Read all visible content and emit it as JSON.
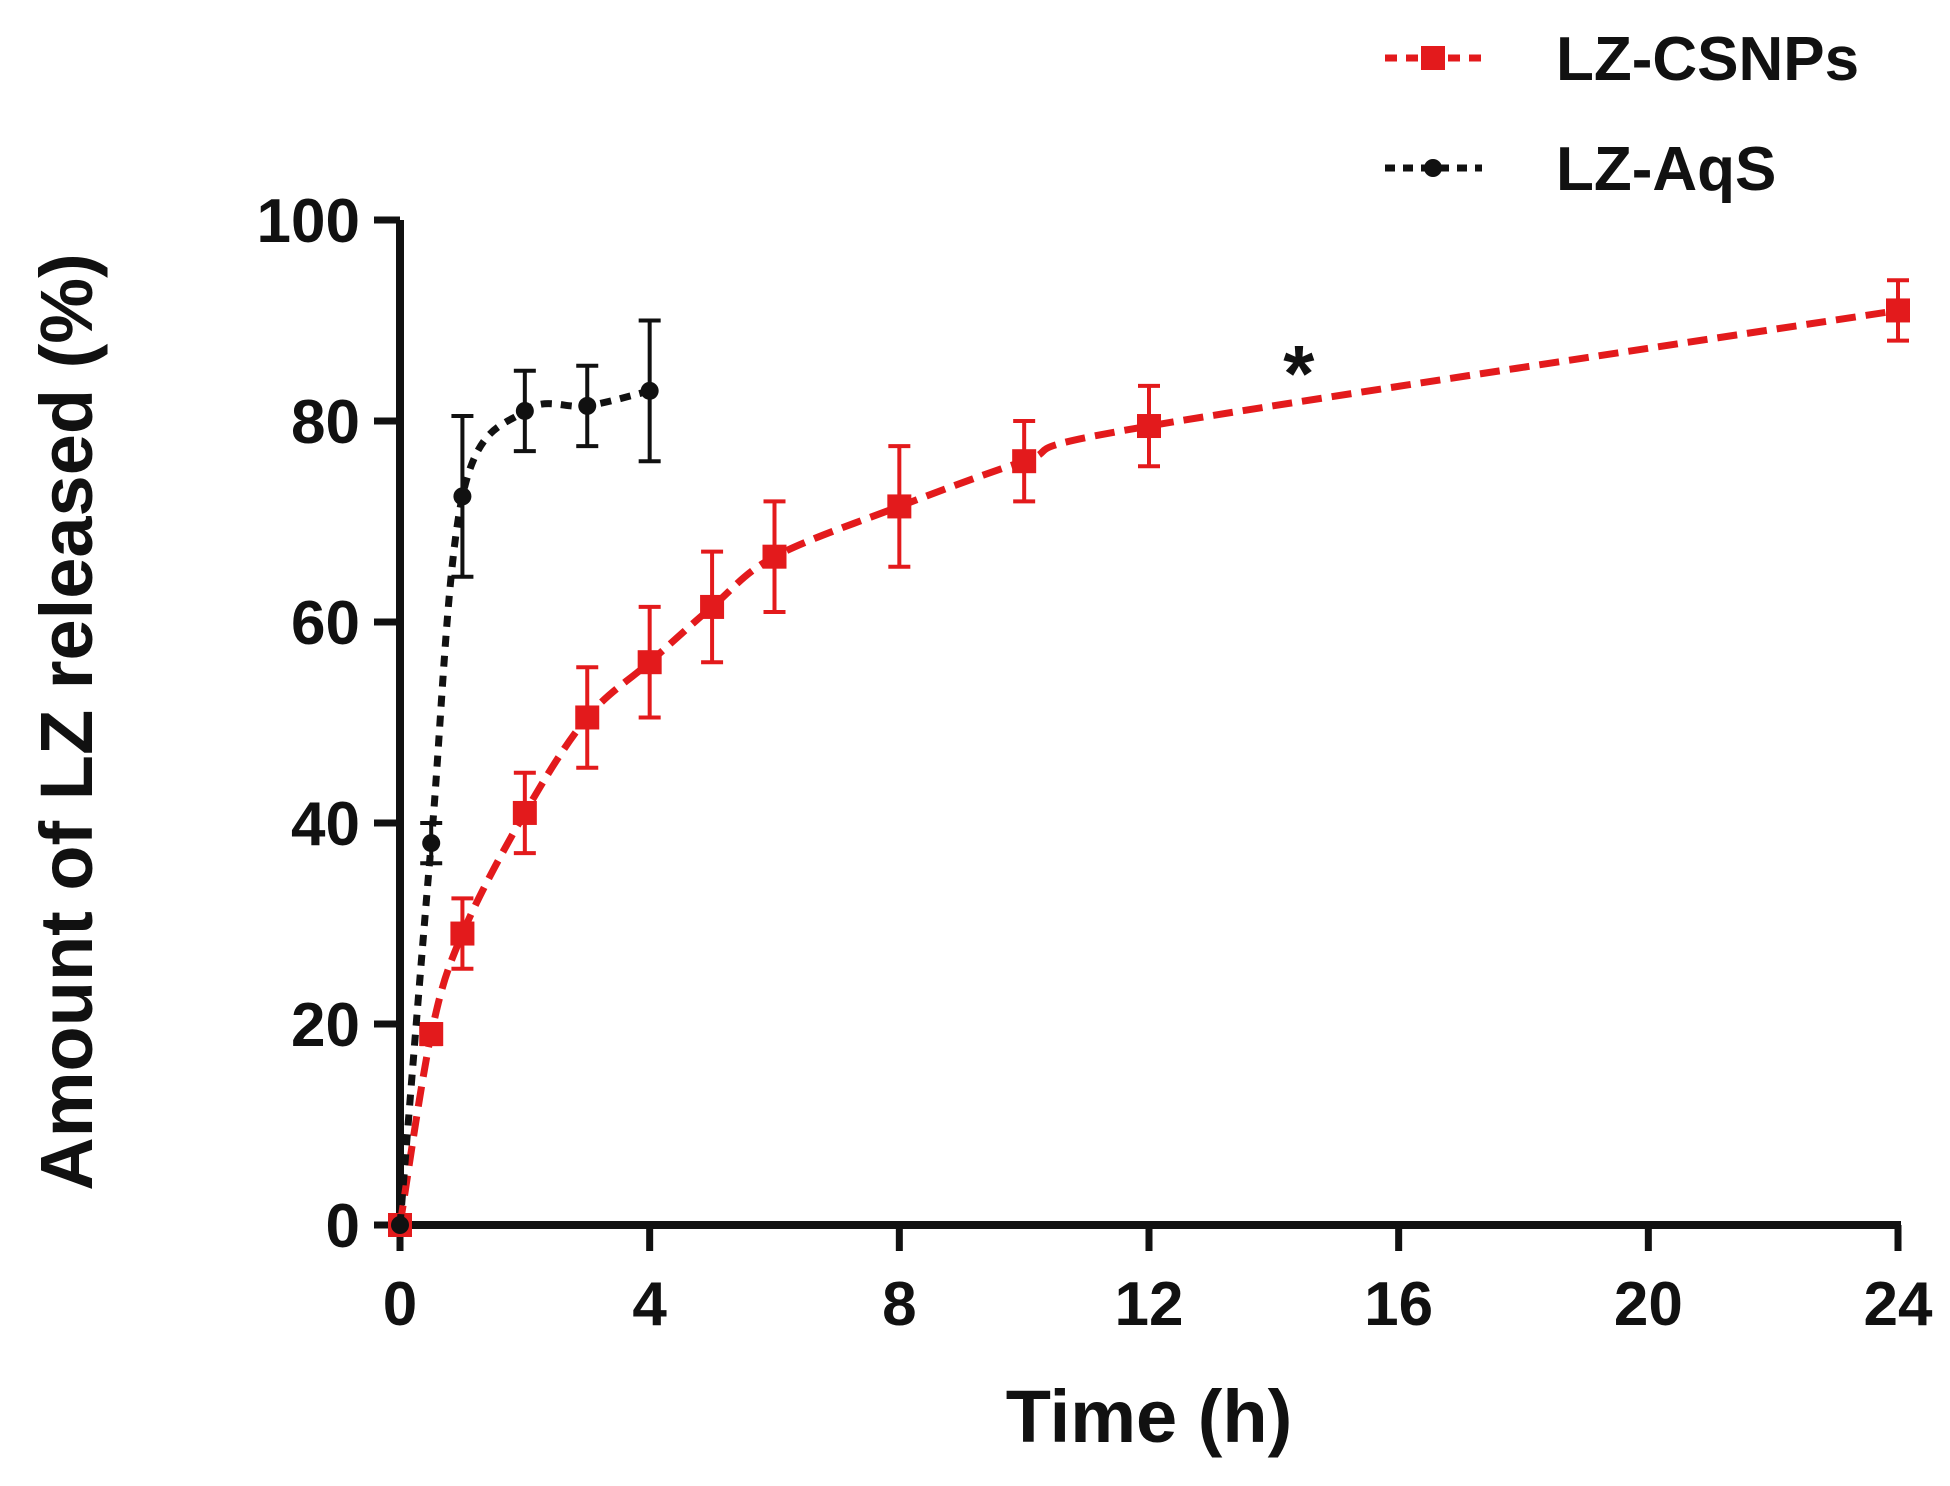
{
  "chart_data": {
    "type": "line",
    "title": "",
    "xlabel": "Time (h)",
    "ylabel": "Amount of LZ released (%)",
    "xlim": [
      0,
      24
    ],
    "ylim": [
      0,
      100
    ],
    "xticks": [
      0,
      4,
      8,
      12,
      16,
      20,
      24
    ],
    "yticks": [
      0,
      20,
      40,
      60,
      80,
      100
    ],
    "grid": false,
    "legend_position": "top-right",
    "series": [
      {
        "name": "LZ-CSNPs",
        "color": "#e31a1c",
        "marker": "square",
        "line_style": "dashed",
        "x": [
          0,
          0.5,
          1,
          2,
          3,
          4,
          5,
          6,
          8,
          10,
          12,
          24
        ],
        "y": [
          0,
          19,
          29,
          41,
          50.5,
          56,
          61.5,
          66.5,
          71.5,
          76,
          79.5,
          91
        ],
        "error": [
          0,
          1,
          3.5,
          4,
          5,
          5.5,
          5.5,
          5.5,
          6,
          4,
          4,
          3
        ]
      },
      {
        "name": "LZ-AqS",
        "color": "#111111",
        "marker": "circle",
        "line_style": "dotted",
        "x": [
          0,
          0.5,
          1,
          2,
          3,
          4
        ],
        "y": [
          0,
          38,
          72.5,
          81,
          81.5,
          83
        ],
        "error": [
          0,
          2,
          8,
          4,
          4,
          7
        ]
      }
    ],
    "annotations": [
      {
        "text": "*",
        "x": 14.4,
        "y": 85
      }
    ]
  }
}
